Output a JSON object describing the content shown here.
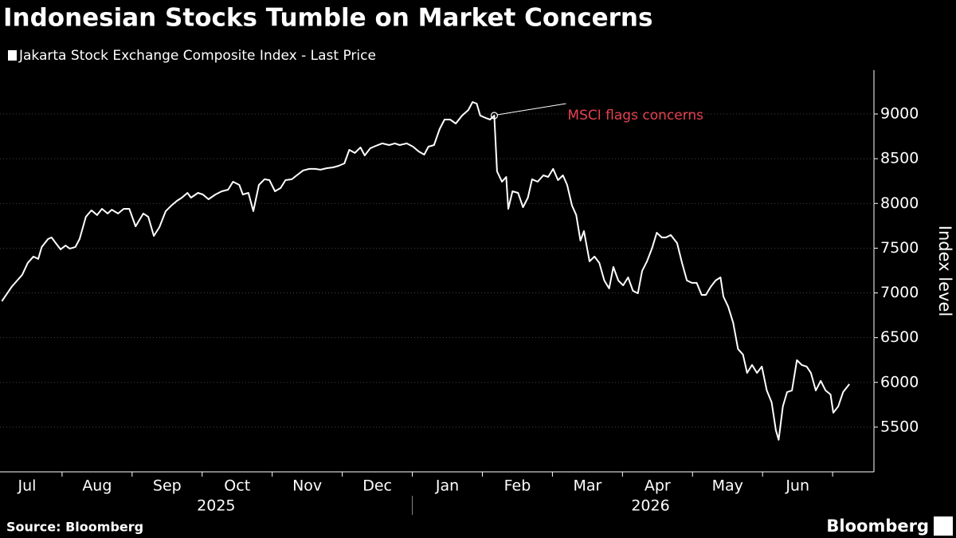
{
  "chart_data": {
    "type": "line",
    "title": "Indonesian Stocks Tumble on Market Concerns",
    "y_label": "Index level",
    "source": "Source: Bloomberg",
    "logo": "Bloomberg",
    "series": [
      {
        "name": "Jakarta Stock Exchange Composite Index - Last Price",
        "color": "#ffffff",
        "x": [
          0.14,
          0.28,
          0.43,
          0.51,
          0.59,
          0.66,
          0.71,
          0.8,
          0.85,
          0.91,
          0.98,
          1.05,
          1.11,
          1.19,
          1.25,
          1.34,
          1.42,
          1.5,
          1.57,
          1.65,
          1.71,
          1.8,
          1.88,
          1.96,
          2.05,
          2.16,
          2.23,
          2.31,
          2.39,
          2.48,
          2.56,
          2.64,
          2.71,
          2.79,
          2.84,
          2.94,
          3.01,
          3.09,
          3.19,
          3.28,
          3.37,
          3.44,
          3.53,
          3.58,
          3.66,
          3.73,
          3.81,
          3.89,
          3.96,
          4.04,
          4.12,
          4.19,
          4.28,
          4.35,
          4.44,
          4.53,
          4.61,
          4.69,
          4.78,
          4.87,
          4.95,
          5.03,
          5.1,
          5.18,
          5.26,
          5.32,
          5.4,
          5.48,
          5.57,
          5.67,
          5.75,
          5.82,
          5.92,
          6.01,
          6.09,
          6.17,
          6.23,
          6.31,
          6.39,
          6.46,
          6.54,
          6.62,
          6.71,
          6.8,
          6.86,
          6.92,
          6.97,
          7.05,
          7.11,
          7.17,
          7.21,
          7.28,
          7.34,
          7.37,
          7.43,
          7.51,
          7.58,
          7.65,
          7.71,
          7.79,
          7.87,
          7.94,
          8.01,
          8.08,
          8.15,
          8.21,
          8.28,
          8.34,
          8.4,
          8.45,
          8.53,
          8.6,
          8.67,
          8.74,
          8.81,
          8.87,
          8.94,
          9.01,
          9.08,
          9.15,
          9.22,
          9.28,
          9.35,
          9.42,
          9.49,
          9.56,
          9.62,
          9.69,
          9.78,
          9.85,
          9.92,
          9.99,
          10.06,
          10.13,
          10.19,
          10.26,
          10.33,
          10.4,
          10.44,
          10.51,
          10.58,
          10.65,
          10.72,
          10.78,
          10.85,
          10.92,
          10.99,
          11.06,
          11.13,
          11.19,
          11.23,
          11.29,
          11.35,
          11.42,
          11.49,
          11.56,
          11.63,
          11.69,
          11.76,
          11.83,
          11.9,
          11.97,
          12.01,
          12.08,
          12.15,
          12.24
        ],
        "values": [
          6907,
          7068,
          7201,
          7335,
          7406,
          7380,
          7513,
          7602,
          7620,
          7557,
          7486,
          7530,
          7495,
          7513,
          7602,
          7851,
          7923,
          7870,
          7940,
          7887,
          7930,
          7887,
          7940,
          7940,
          7744,
          7887,
          7851,
          7637,
          7735,
          7914,
          7976,
          8029,
          8065,
          8118,
          8065,
          8118,
          8100,
          8047,
          8100,
          8136,
          8154,
          8243,
          8207,
          8100,
          8118,
          7914,
          8207,
          8270,
          8261,
          8136,
          8172,
          8261,
          8270,
          8314,
          8368,
          8386,
          8386,
          8377,
          8394,
          8403,
          8421,
          8448,
          8599,
          8564,
          8626,
          8537,
          8617,
          8644,
          8671,
          8653,
          8671,
          8653,
          8671,
          8635,
          8581,
          8546,
          8635,
          8653,
          8831,
          8938,
          8938,
          8893,
          8982,
          9045,
          9134,
          9116,
          8982,
          8955,
          8938,
          8982,
          8359,
          8243,
          8296,
          7940,
          8136,
          8118,
          7958,
          8065,
          8270,
          8243,
          8314,
          8296,
          8386,
          8261,
          8314,
          8207,
          7976,
          7870,
          7584,
          7691,
          7353,
          7406,
          7335,
          7139,
          7050,
          7290,
          7139,
          7085,
          7174,
          7023,
          6996,
          7246,
          7353,
          7495,
          7673,
          7620,
          7620,
          7647,
          7557,
          7335,
          7139,
          7112,
          7112,
          6978,
          6978,
          7068,
          7139,
          7174,
          6960,
          6845,
          6667,
          6373,
          6311,
          6106,
          6195,
          6106,
          6177,
          5910,
          5776,
          5465,
          5358,
          5732,
          5892,
          5910,
          6248,
          6195,
          6177,
          6106,
          5910,
          6017,
          5910,
          5865,
          5660,
          5732,
          5892,
          5981
        ]
      }
    ],
    "annotation": {
      "text": "MSCI flags concerns",
      "x": 7.17,
      "y": 8982,
      "color": "#e8404f"
    },
    "xlim": [
      0.114,
      12.59
    ],
    "xticks": [
      {
        "value": 0.5,
        "label": "Jul"
      },
      {
        "value": 1.5,
        "label": "Aug"
      },
      {
        "value": 2.5,
        "label": "Sep"
      },
      {
        "value": 3.5,
        "label": "Oct"
      },
      {
        "value": 4.5,
        "label": "Nov"
      },
      {
        "value": 5.5,
        "label": "Dec"
      },
      {
        "value": 6.5,
        "label": "Jan"
      },
      {
        "value": 7.5,
        "label": "Feb"
      },
      {
        "value": 8.5,
        "label": "Mar"
      },
      {
        "value": 9.5,
        "label": "Apr"
      },
      {
        "value": 10.5,
        "label": "May"
      },
      {
        "value": 11.5,
        "label": "Jun"
      }
    ],
    "xminorticks": [
      1,
      2,
      3,
      4,
      5,
      6,
      7,
      8,
      9,
      10,
      11,
      12
    ],
    "year_ticks": [
      {
        "value": 3.2,
        "label": "2025"
      },
      {
        "value": 9.4,
        "label": "2026"
      }
    ],
    "year_divider": 6,
    "ylim": [
      5000,
      9490
    ],
    "yticks": [
      5500,
      6000,
      6500,
      7000,
      7500,
      8000,
      8500,
      9000
    ],
    "grid": true
  }
}
